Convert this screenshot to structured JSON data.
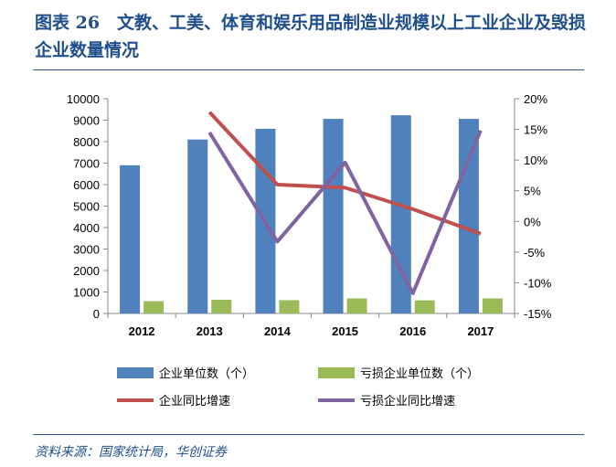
{
  "title": "图表 26　文教、工美、体育和娱乐用品制造业规模以上工业企业及毁损企业数量情况",
  "source": "资料来源：国家统计局，华创证券",
  "chart_data": {
    "type": "bar+line",
    "categories": [
      "2012",
      "2013",
      "2014",
      "2015",
      "2016",
      "2017"
    ],
    "y_left": {
      "range": [
        0,
        10000
      ],
      "ticks": [
        "0",
        "1000",
        "2000",
        "3000",
        "4000",
        "5000",
        "6000",
        "7000",
        "8000",
        "9000",
        "10000"
      ]
    },
    "y_right": {
      "range": [
        -15,
        20
      ],
      "ticks": [
        "-15%",
        "-10%",
        "-5%",
        "0%",
        "5%",
        "10%",
        "15%",
        "20%"
      ]
    },
    "grid": false,
    "legend_position": "bottom",
    "series": [
      {
        "name": "企业单位数（个）",
        "type": "bar",
        "axis": "left",
        "color": "#4f81bd",
        "values": [
          6900,
          8100,
          8600,
          9060,
          9230,
          9060
        ]
      },
      {
        "name": "亏损企业单位数（个）",
        "type": "bar",
        "axis": "left",
        "color": "#9bbb59",
        "values": [
          570,
          640,
          620,
          700,
          610,
          700
        ]
      },
      {
        "name": "企业同比增速",
        "type": "line",
        "axis": "right",
        "color": "#c0504d",
        "values": [
          null,
          17.8,
          6.0,
          5.5,
          2.0,
          -2.0
        ]
      },
      {
        "name": "亏损企业同比增速",
        "type": "line",
        "axis": "right",
        "color": "#8064a2",
        "values": [
          null,
          14.5,
          -3.3,
          9.6,
          -11.7,
          14.8
        ]
      }
    ]
  }
}
